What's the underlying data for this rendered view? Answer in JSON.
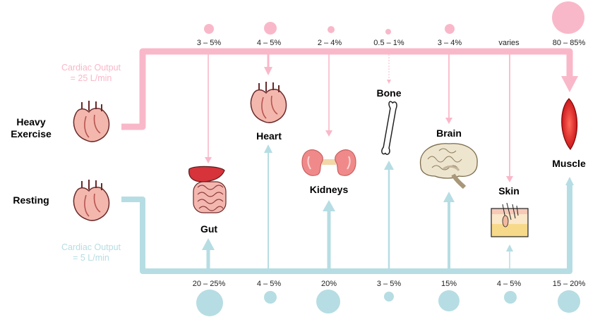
{
  "states": {
    "exercise": {
      "label_line1": "Heavy",
      "label_line2": "Exercise",
      "co_line1": "Cardiac Output",
      "co_line2": "= 25 L/min",
      "color": "#f9b8c9"
    },
    "resting": {
      "label": "Resting",
      "co_line1": "Cardiac Output",
      "co_line2": "= 5 L/min",
      "color": "#b6dde3"
    }
  },
  "organs": {
    "gut": "Gut",
    "heart": "Heart",
    "kidneys": "Kidneys",
    "bone": "Bone",
    "brain": "Brain",
    "skin": "Skin",
    "muscle": "Muscle"
  },
  "exercise_percent": {
    "gut": "3 – 5%",
    "heart": "4 – 5%",
    "kidneys": "2 – 4%",
    "bone": "0.5 – 1%",
    "brain": "3 – 4%",
    "skin": "varies",
    "muscle": "80 – 85%"
  },
  "resting_percent": {
    "gut": "20 – 25%",
    "heart": "4 – 5%",
    "kidneys": "20%",
    "bone": "3 – 5%",
    "brain": "15%",
    "skin": "4 – 5%",
    "muscle": "15 – 20%"
  },
  "icons": {
    "heart": "heart-icon",
    "gut": "gut-icon",
    "kidneys": "kidneys-icon",
    "bone": "bone-icon",
    "brain": "brain-icon",
    "skin": "skin-icon",
    "muscle": "muscle-icon"
  }
}
